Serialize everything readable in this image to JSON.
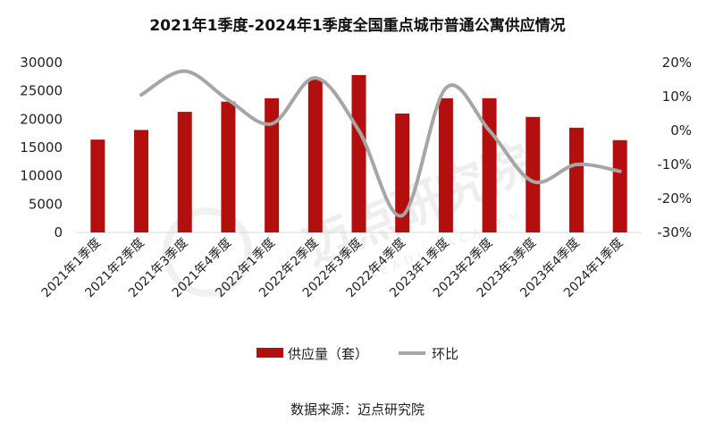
{
  "chart_data": {
    "type": "bar",
    "title": "2021年1季度-2024年1季度全国重点城市普通公寓供应情况",
    "categories": [
      "2021年1季度",
      "2021年2季度",
      "2021年3季度",
      "2021年4季度",
      "2022年1季度",
      "2022年2季度",
      "2022年3季度",
      "2022年4季度",
      "2023年1季度",
      "2023年2季度",
      "2023年3季度",
      "2023年4季度",
      "2024年1季度"
    ],
    "series": [
      {
        "name": "供应量（套）",
        "type": "bar",
        "axis": "left",
        "color": "#b30f0f",
        "values": [
          16400,
          18100,
          21300,
          23100,
          23700,
          27200,
          27800,
          21000,
          23700,
          23700,
          20400,
          18500,
          16300
        ]
      },
      {
        "name": "环比",
        "type": "line",
        "axis": "right",
        "color": "#a6a6a6",
        "unit": "%",
        "values": [
          null,
          10.5,
          17.5,
          9,
          2,
          15.5,
          0,
          -25,
          12.5,
          0,
          -15,
          -10,
          -12
        ]
      }
    ],
    "y_left": {
      "min": 0,
      "max": 30000,
      "ticks": [
        "0",
        "5000",
        "10000",
        "15000",
        "20000",
        "25000",
        "30000"
      ]
    },
    "y_right": {
      "min": -30,
      "max": 20,
      "ticks": [
        "-30%",
        "-20%",
        "-10%",
        "0%",
        "10%",
        "20%"
      ]
    },
    "legend_position": "bottom",
    "source": "数据来源：迈点研究院",
    "watermark": {
      "text": "迈点研究院",
      "subtext": "MEADIN ACADEMY"
    }
  }
}
